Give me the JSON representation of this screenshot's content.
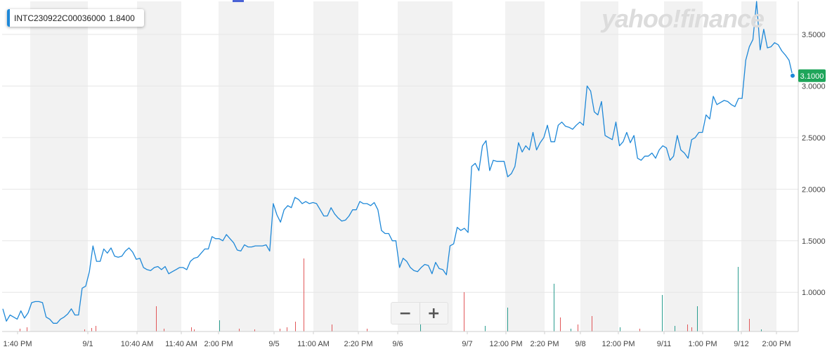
{
  "symbol": {
    "ticker": "INTC230922C00036000",
    "price": "1.8400"
  },
  "watermark": "yahoo!finance",
  "zoom": {
    "minus": "−",
    "plus": "+"
  },
  "current_price_label": "3.1000",
  "colors": {
    "line": "#1e88d8",
    "band": "#f2f2f2",
    "price_tag": "#1ea55a",
    "vol_up": "#2a9d8f",
    "vol_down": "#e15759"
  },
  "chart_data": {
    "type": "line",
    "title": "",
    "ylim": [
      0.62,
      3.82
    ],
    "yticks": [
      1.0,
      1.5,
      2.0,
      2.5,
      3.0,
      3.5
    ],
    "ytick_labels": [
      "1.0000",
      "1.5000",
      "2.0000",
      "2.5000",
      "3.0000",
      "3.5000"
    ],
    "xtick_labels": [
      "1:40 PM",
      "9/1",
      "10:40 AM",
      "11:40 AM",
      "2:00 PM",
      "9/5",
      "11:00 AM",
      "2:20 PM",
      "9/6",
      "9/7",
      "12:00 PM",
      "2:20 PM",
      "9/8",
      "12:00 PM",
      "9/11",
      "1:00 PM",
      "9/12",
      "2:00 PM"
    ],
    "grid": true,
    "series": [
      {
        "values": [
          0.84,
          0.72,
          0.78,
          0.76,
          0.74,
          0.82,
          0.75,
          0.8,
          0.9,
          0.91,
          0.91,
          0.9,
          0.76,
          0.74,
          0.7,
          0.7,
          0.74,
          0.76,
          0.79,
          0.84,
          0.78,
          0.78,
          1.04,
          1.06,
          1.2,
          1.45,
          1.3,
          1.3,
          1.42,
          1.38,
          1.43,
          1.35,
          1.34,
          1.35,
          1.4,
          1.43,
          1.39,
          1.32,
          1.33,
          1.24,
          1.22,
          1.21,
          1.24,
          1.25,
          1.22,
          1.25,
          1.18,
          1.2,
          1.22,
          1.24,
          1.24,
          1.22,
          1.3,
          1.33,
          1.34,
          1.38,
          1.42,
          1.42,
          1.54,
          1.52,
          1.52,
          1.5,
          1.56,
          1.52,
          1.48,
          1.41,
          1.4,
          1.46,
          1.44,
          1.44,
          1.45,
          1.45,
          1.45,
          1.46,
          1.4,
          1.86,
          1.75,
          1.68,
          1.8,
          1.84,
          1.82,
          1.92,
          1.9,
          1.86,
          1.88,
          1.86,
          1.87,
          1.86,
          1.8,
          1.74,
          1.74,
          1.82,
          1.76,
          1.72,
          1.69,
          1.7,
          1.74,
          1.8,
          1.8,
          1.88,
          1.86,
          1.86,
          1.84,
          1.87,
          1.8,
          1.6,
          1.57,
          1.57,
          1.5,
          1.5,
          1.24,
          1.33,
          1.3,
          1.24,
          1.21,
          1.2,
          1.24,
          1.27,
          1.26,
          1.18,
          1.29,
          1.23,
          1.22,
          1.17,
          1.45,
          1.47,
          1.63,
          1.6,
          1.62,
          1.58,
          2.22,
          2.25,
          2.18,
          2.42,
          2.47,
          2.18,
          2.28,
          2.27,
          2.27,
          2.27,
          2.12,
          2.15,
          2.22,
          2.45,
          2.36,
          2.42,
          2.38,
          2.55,
          2.38,
          2.45,
          2.5,
          2.62,
          2.46,
          2.46,
          2.62,
          2.65,
          2.61,
          2.6,
          2.58,
          2.62,
          2.65,
          2.62,
          3.0,
          2.95,
          2.75,
          2.72,
          2.85,
          2.52,
          2.5,
          2.48,
          2.65,
          2.42,
          2.46,
          2.55,
          2.45,
          2.52,
          2.3,
          2.28,
          2.32,
          2.32,
          2.35,
          2.3,
          2.38,
          2.42,
          2.4,
          2.28,
          2.32,
          2.52,
          2.38,
          2.35,
          2.3,
          2.48,
          2.5,
          2.55,
          2.55,
          2.72,
          2.68,
          2.9,
          2.82,
          2.84,
          2.86,
          2.85,
          2.82,
          2.8,
          2.88,
          2.88,
          3.25,
          3.38,
          3.45,
          3.82,
          3.35,
          3.55,
          3.37,
          3.38,
          3.42,
          3.4,
          3.34,
          3.3,
          3.25,
          3.1
        ]
      }
    ]
  }
}
